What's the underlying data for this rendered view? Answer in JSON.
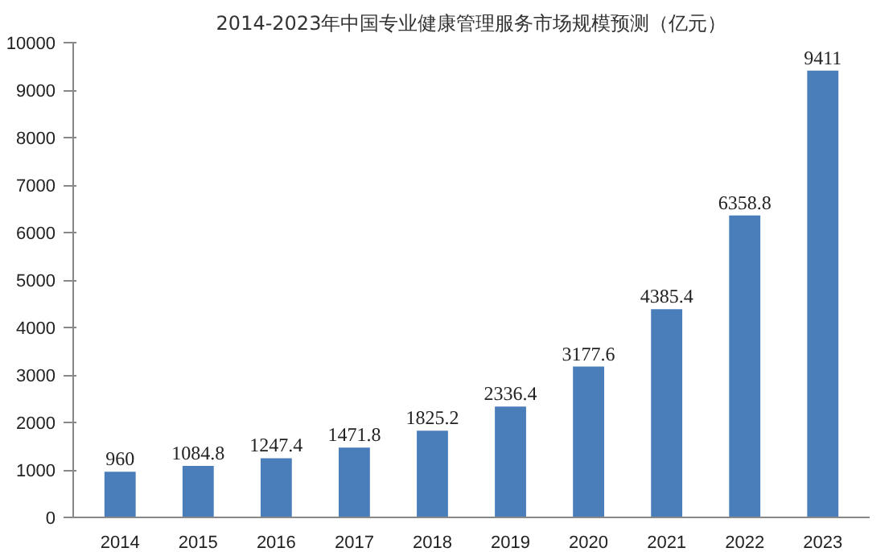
{
  "chart_data": {
    "type": "bar",
    "title": "2014-2023年中国专业健康管理服务市场规模预测（亿元）",
    "categories": [
      "2014",
      "2015",
      "2016",
      "2017",
      "2018",
      "2019",
      "2020",
      "2021",
      "2022",
      "2023"
    ],
    "values": [
      960,
      1084.8,
      1247.4,
      1471.8,
      1825.2,
      2336.4,
      3177.6,
      4385.4,
      6358.8,
      9411
    ],
    "color": "#4a7ebb",
    "ylim": [
      0,
      10000
    ],
    "yticks": [
      0,
      1000,
      2000,
      3000,
      4000,
      5000,
      6000,
      7000,
      8000,
      9000,
      10000
    ],
    "data_labels": true,
    "grid": false
  }
}
